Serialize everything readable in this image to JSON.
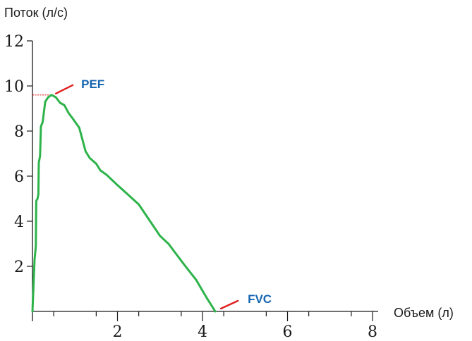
{
  "chart_data": {
    "type": "line",
    "title": "",
    "xlabel": "Объем (л)",
    "ylabel": "Поток (л/с)",
    "xlim": [
      0,
      8
    ],
    "ylim": [
      0,
      12
    ],
    "x_ticks": [
      {
        "value": 2,
        "label": "2"
      },
      {
        "value": 4,
        "label": "4"
      },
      {
        "value": 6,
        "label": "6"
      },
      {
        "value": 8,
        "label": "8"
      }
    ],
    "y_ticks": [
      {
        "value": 2,
        "label": "2"
      },
      {
        "value": 4,
        "label": "4"
      },
      {
        "value": 6,
        "label": "6"
      },
      {
        "value": 8,
        "label": "8"
      },
      {
        "value": 10,
        "label": "10"
      },
      {
        "value": 12,
        "label": "12"
      }
    ],
    "grid": false,
    "series": [
      {
        "color": "#2db34a",
        "points": [
          [
            0.0,
            0.0
          ],
          [
            0.05,
            2.3
          ],
          [
            0.08,
            2.9
          ],
          [
            0.09,
            4.9
          ],
          [
            0.12,
            5.0
          ],
          [
            0.14,
            5.2
          ],
          [
            0.15,
            6.6
          ],
          [
            0.18,
            6.9
          ],
          [
            0.2,
            8.2
          ],
          [
            0.24,
            8.4
          ],
          [
            0.3,
            9.3
          ],
          [
            0.37,
            9.5
          ],
          [
            0.45,
            9.6
          ],
          [
            0.55,
            9.5
          ],
          [
            0.65,
            9.25
          ],
          [
            0.75,
            9.15
          ],
          [
            0.85,
            8.8
          ],
          [
            0.95,
            8.55
          ],
          [
            1.1,
            8.15
          ],
          [
            1.25,
            7.1
          ],
          [
            1.35,
            6.8
          ],
          [
            1.5,
            6.55
          ],
          [
            1.6,
            6.25
          ],
          [
            1.75,
            6.05
          ],
          [
            2.0,
            5.6
          ],
          [
            2.5,
            4.75
          ],
          [
            3.0,
            3.35
          ],
          [
            3.2,
            3.0
          ],
          [
            3.4,
            2.5
          ],
          [
            3.6,
            2.0
          ],
          [
            3.85,
            1.4
          ],
          [
            4.1,
            0.6
          ],
          [
            4.3,
            0.0
          ]
        ]
      }
    ],
    "annotations": [
      {
        "label": "PEF",
        "color": "#1565b0",
        "value_x": 0.45,
        "value_y": 9.6
      },
      {
        "label": "FVC",
        "color": "#1565b0",
        "value_x": 4.3,
        "value_y": 0.0
      }
    ],
    "pef_guide_color": "#e02020",
    "pointer_color": "#e02020"
  }
}
